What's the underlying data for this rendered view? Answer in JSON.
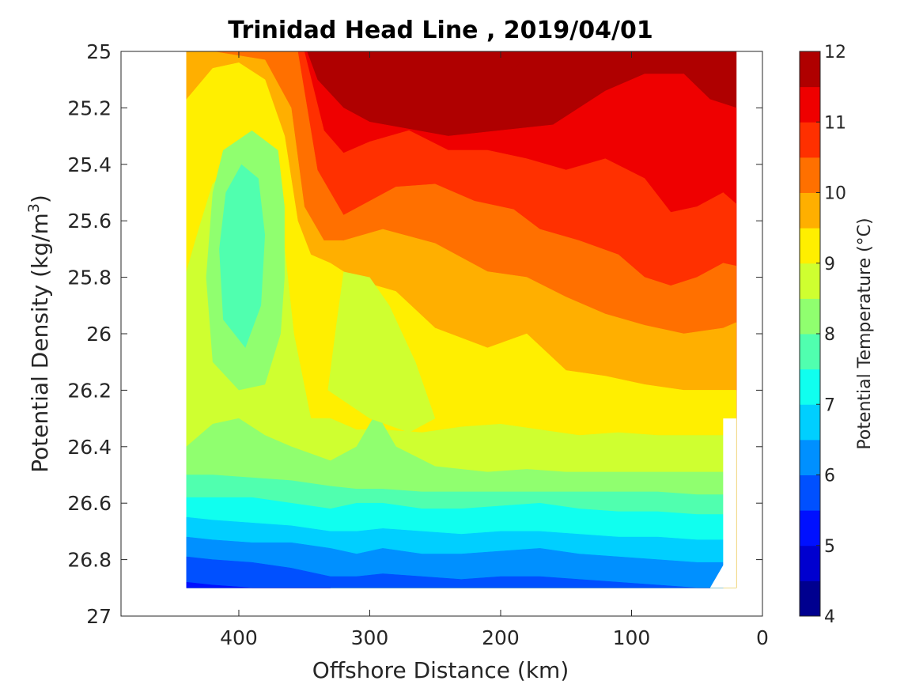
{
  "chart_data": {
    "type": "contour",
    "title": "Trinidad Head Line , 2019/04/01",
    "xlabel": "Offshore Distance (km)",
    "ylabel": "Potential Density (kg/m",
    "ylabel_superscript": "3",
    "ylabel_close": ")",
    "colorbar_label": "Potential Temperature (°C)",
    "x_reversed": true,
    "xlim": [
      0,
      490
    ],
    "ylim": [
      25,
      27
    ],
    "y_reversed": true,
    "x_ticks": [
      400,
      300,
      200,
      100,
      0
    ],
    "x_tick_labels": [
      "400",
      "300",
      "200",
      "100",
      "0"
    ],
    "y_ticks": [
      25,
      25.2,
      25.4,
      25.6,
      25.8,
      26,
      26.2,
      26.4,
      26.6,
      26.8,
      27
    ],
    "y_tick_labels": [
      "25",
      "25.2",
      "25.4",
      "25.6",
      "25.8",
      "26",
      "26.2",
      "26.4",
      "26.6",
      "26.8",
      "27"
    ],
    "colorbar": {
      "range": [
        4,
        12
      ],
      "ticks": [
        4,
        5,
        6,
        7,
        8,
        9,
        10,
        11,
        12
      ],
      "tick_labels": [
        "4",
        "5",
        "6",
        "7",
        "8",
        "9",
        "10",
        "11",
        "12"
      ],
      "level_step": 0.5,
      "colors": [
        "#00008f",
        "#0000cf",
        "#0010ff",
        "#0050ff",
        "#0090ff",
        "#00cfff",
        "#10ffef",
        "#50ffaf",
        "#90ff6f",
        "#cfff30",
        "#ffef00",
        "#ffaf00",
        "#ff7000",
        "#ff3000",
        "#ef0000",
        "#af0000"
      ]
    },
    "data_extent": {
      "x_min": 20,
      "x_max": 440,
      "y_min": 25,
      "y_max": 26.9
    },
    "bands": [
      {
        "level": 12.0,
        "top": [
          [
            440,
            25
          ],
          [
            20,
            25
          ]
        ]
      },
      {
        "level": 11.5,
        "top": [
          [
            440,
            25
          ],
          [
            345,
            25
          ],
          [
            340,
            25.13
          ],
          [
            335,
            25.0
          ],
          [
            200,
            25
          ],
          [
            190,
            25.07
          ],
          [
            180,
            25
          ],
          [
            20,
            25
          ]
        ]
      },
      {
        "level": 11.0,
        "top": [
          [
            440,
            25
          ],
          [
            348,
            25
          ],
          [
            340,
            25.1
          ],
          [
            320,
            25.2
          ],
          [
            300,
            25.25
          ],
          [
            240,
            25.3
          ],
          [
            160,
            25.26
          ],
          [
            120,
            25.14
          ],
          [
            90,
            25.08
          ],
          [
            60,
            25.08
          ],
          [
            40,
            25.17
          ],
          [
            20,
            25.2
          ]
        ]
      },
      {
        "level": 10.5,
        "top": [
          [
            440,
            25
          ],
          [
            350,
            25.0
          ],
          [
            335,
            25.28
          ],
          [
            320,
            25.36
          ],
          [
            300,
            25.32
          ],
          [
            270,
            25.28
          ],
          [
            240,
            25.35
          ],
          [
            210,
            25.35
          ],
          [
            180,
            25.38
          ],
          [
            150,
            25.42
          ],
          [
            120,
            25.38
          ],
          [
            90,
            25.45
          ],
          [
            70,
            25.57
          ],
          [
            50,
            25.55
          ],
          [
            30,
            25.5
          ],
          [
            20,
            25.54
          ]
        ]
      },
      {
        "level": 10.0,
        "top": [
          [
            440,
            25
          ],
          [
            355,
            25.0
          ],
          [
            340,
            25.42
          ],
          [
            320,
            25.58
          ],
          [
            300,
            25.53
          ],
          [
            280,
            25.48
          ],
          [
            250,
            25.47
          ],
          [
            220,
            25.53
          ],
          [
            190,
            25.56
          ],
          [
            170,
            25.63
          ],
          [
            140,
            25.67
          ],
          [
            110,
            25.72
          ],
          [
            90,
            25.8
          ],
          [
            70,
            25.83
          ],
          [
            50,
            25.8
          ],
          [
            30,
            25.75
          ],
          [
            20,
            25.76
          ]
        ]
      },
      {
        "level": 9.5,
        "top": [
          [
            440,
            25.0
          ],
          [
            420,
            25.0
          ],
          [
            380,
            25.03
          ],
          [
            360,
            25.2
          ],
          [
            350,
            25.55
          ],
          [
            335,
            25.67
          ],
          [
            320,
            25.67
          ],
          [
            290,
            25.63
          ],
          [
            250,
            25.68
          ],
          [
            210,
            25.78
          ],
          [
            180,
            25.8
          ],
          [
            150,
            25.87
          ],
          [
            120,
            25.93
          ],
          [
            90,
            25.97
          ],
          [
            60,
            26.0
          ],
          [
            30,
            25.98
          ],
          [
            20,
            25.96
          ]
        ]
      },
      {
        "level": 9.0,
        "top": [
          [
            440,
            25.17
          ],
          [
            420,
            25.06
          ],
          [
            400,
            25.04
          ],
          [
            380,
            25.1
          ],
          [
            365,
            25.3
          ],
          [
            355,
            25.6
          ],
          [
            345,
            25.72
          ],
          [
            330,
            25.75
          ],
          [
            310,
            25.81
          ],
          [
            280,
            25.85
          ],
          [
            250,
            25.98
          ],
          [
            210,
            26.05
          ],
          [
            180,
            26.0
          ],
          [
            150,
            26.13
          ],
          [
            120,
            26.15
          ],
          [
            90,
            26.18
          ],
          [
            60,
            26.2
          ],
          [
            30,
            26.2
          ],
          [
            20,
            26.2
          ]
        ]
      },
      {
        "level": 8.5,
        "top": [
          [
            440,
            25.78
          ],
          [
            430,
            25.62
          ],
          [
            420,
            25.47
          ],
          [
            400,
            25.38
          ],
          [
            380,
            25.4
          ],
          [
            370,
            25.5
          ],
          [
            365,
            25.7
          ],
          [
            358,
            26.0
          ],
          [
            345,
            26.3
          ],
          [
            330,
            26.3
          ],
          [
            310,
            26.34
          ],
          [
            290,
            26.34
          ],
          [
            260,
            26.35
          ],
          [
            230,
            26.33
          ],
          [
            200,
            26.32
          ],
          [
            170,
            26.34
          ],
          [
            140,
            26.36
          ],
          [
            110,
            26.35
          ],
          [
            80,
            26.36
          ],
          [
            50,
            26.36
          ],
          [
            30,
            26.36
          ],
          [
            20,
            26.3
          ]
        ]
      },
      {
        "level": 8.0,
        "top": [
          [
            440,
            26.4
          ],
          [
            420,
            26.32
          ],
          [
            400,
            26.3
          ],
          [
            380,
            26.36
          ],
          [
            360,
            26.4
          ],
          [
            330,
            26.45
          ],
          [
            310,
            26.4
          ],
          [
            295,
            26.28
          ],
          [
            280,
            26.4
          ],
          [
            250,
            26.47
          ],
          [
            210,
            26.49
          ],
          [
            180,
            26.48
          ],
          [
            150,
            26.49
          ],
          [
            120,
            26.49
          ],
          [
            90,
            26.49
          ],
          [
            60,
            26.49
          ],
          [
            30,
            26.49
          ]
        ]
      },
      {
        "level": 7.5,
        "top": [
          [
            440,
            26.5
          ],
          [
            420,
            26.5
          ],
          [
            390,
            26.51
          ],
          [
            360,
            26.52
          ],
          [
            330,
            26.54
          ],
          [
            310,
            26.55
          ],
          [
            290,
            26.55
          ],
          [
            260,
            26.56
          ],
          [
            230,
            26.56
          ],
          [
            200,
            26.56
          ],
          [
            170,
            26.56
          ],
          [
            140,
            26.56
          ],
          [
            110,
            26.56
          ],
          [
            80,
            26.56
          ],
          [
            50,
            26.57
          ],
          [
            30,
            26.57
          ]
        ]
      },
      {
        "level": 7.0,
        "top": [
          [
            440,
            26.58
          ],
          [
            420,
            26.58
          ],
          [
            390,
            26.58
          ],
          [
            360,
            26.6
          ],
          [
            330,
            26.62
          ],
          [
            310,
            26.6
          ],
          [
            290,
            26.6
          ],
          [
            260,
            26.62
          ],
          [
            230,
            26.62
          ],
          [
            200,
            26.61
          ],
          [
            170,
            26.6
          ],
          [
            140,
            26.62
          ],
          [
            110,
            26.63
          ],
          [
            80,
            26.63
          ],
          [
            50,
            26.64
          ],
          [
            30,
            26.64
          ]
        ]
      },
      {
        "level": 6.5,
        "top": [
          [
            440,
            26.65
          ],
          [
            420,
            26.66
          ],
          [
            390,
            26.67
          ],
          [
            360,
            26.68
          ],
          [
            330,
            26.7
          ],
          [
            310,
            26.7
          ],
          [
            290,
            26.69
          ],
          [
            260,
            26.7
          ],
          [
            230,
            26.71
          ],
          [
            200,
            26.7
          ],
          [
            170,
            26.7
          ],
          [
            140,
            26.71
          ],
          [
            110,
            26.72
          ],
          [
            80,
            26.72
          ],
          [
            50,
            26.73
          ],
          [
            30,
            26.73
          ]
        ]
      },
      {
        "level": 6.0,
        "top": [
          [
            440,
            26.72
          ],
          [
            420,
            26.73
          ],
          [
            390,
            26.74
          ],
          [
            360,
            26.74
          ],
          [
            330,
            26.76
          ],
          [
            310,
            26.78
          ],
          [
            290,
            26.76
          ],
          [
            260,
            26.78
          ],
          [
            230,
            26.78
          ],
          [
            200,
            26.77
          ],
          [
            170,
            26.76
          ],
          [
            140,
            26.78
          ],
          [
            110,
            26.79
          ],
          [
            80,
            26.8
          ],
          [
            50,
            26.81
          ],
          [
            30,
            26.81
          ]
        ]
      },
      {
        "level": 5.5,
        "top": [
          [
            440,
            26.79
          ],
          [
            420,
            26.8
          ],
          [
            390,
            26.81
          ],
          [
            360,
            26.83
          ],
          [
            330,
            26.86
          ],
          [
            310,
            26.86
          ],
          [
            290,
            26.85
          ],
          [
            260,
            26.86
          ],
          [
            230,
            26.87
          ],
          [
            200,
            26.86
          ],
          [
            170,
            26.86
          ],
          [
            140,
            26.87
          ],
          [
            110,
            26.88
          ],
          [
            80,
            26.89
          ],
          [
            50,
            26.9
          ],
          [
            40,
            26.9
          ]
        ]
      },
      {
        "level": 5.0,
        "top": [
          [
            440,
            26.88
          ],
          [
            420,
            26.89
          ],
          [
            390,
            26.9
          ],
          [
            360,
            26.9
          ],
          [
            330,
            26.9
          ]
        ]
      }
    ],
    "blobs": [
      {
        "level": 8.0,
        "outline": [
          [
            412,
            25.35
          ],
          [
            420,
            25.5
          ],
          [
            425,
            25.8
          ],
          [
            420,
            26.1
          ],
          [
            400,
            26.2
          ],
          [
            380,
            26.18
          ],
          [
            368,
            26.0
          ],
          [
            365,
            25.8
          ],
          [
            365,
            25.55
          ],
          [
            370,
            25.35
          ],
          [
            390,
            25.28
          ]
        ]
      },
      {
        "level": 7.5,
        "outline": [
          [
            398,
            25.4
          ],
          [
            410,
            25.5
          ],
          [
            415,
            25.7
          ],
          [
            412,
            25.95
          ],
          [
            395,
            26.05
          ],
          [
            383,
            25.9
          ],
          [
            380,
            25.65
          ],
          [
            385,
            25.45
          ]
        ]
      },
      {
        "level": 8.5,
        "outline": [
          [
            332,
            26.2
          ],
          [
            325,
            25.95
          ],
          [
            320,
            25.78
          ],
          [
            300,
            25.8
          ],
          [
            285,
            25.9
          ],
          [
            265,
            26.1
          ],
          [
            250,
            26.3
          ],
          [
            270,
            26.35
          ],
          [
            300,
            26.3
          ]
        ]
      }
    ]
  }
}
